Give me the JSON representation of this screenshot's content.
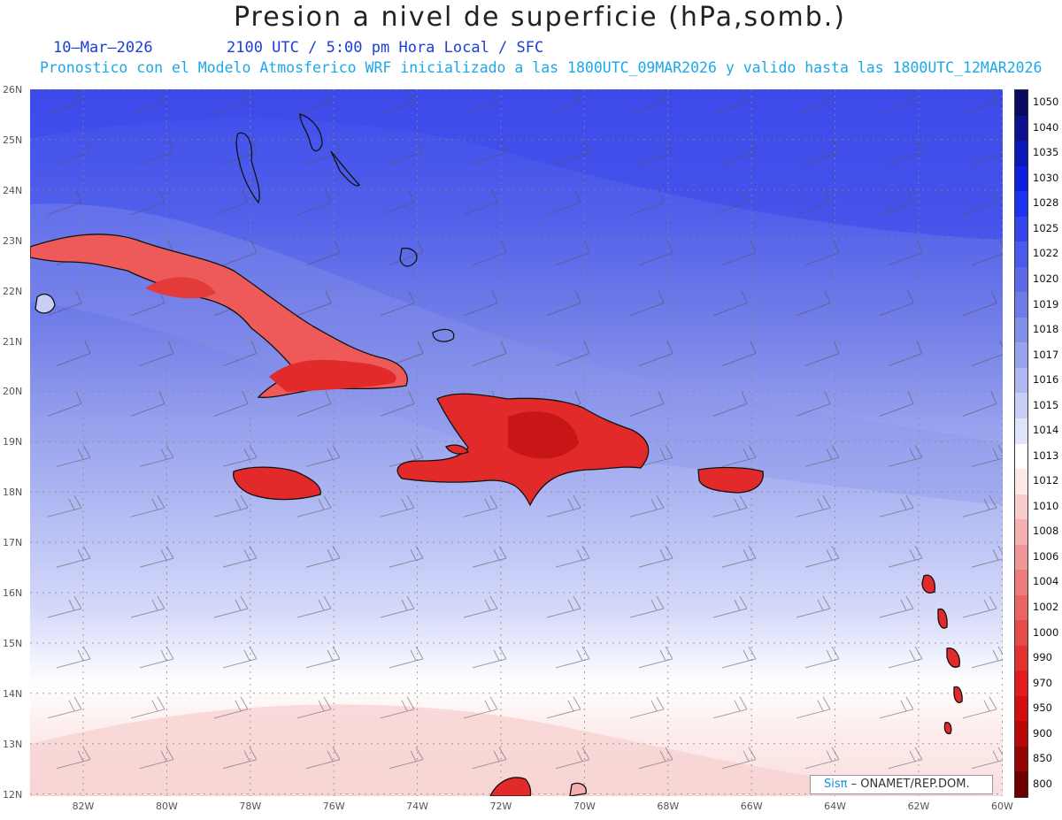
{
  "title": "Presion a nivel de superficie (hPa,somb.)",
  "date": "10–Mar–2026",
  "time_info": "2100 UTC / 5:00 pm Hora Local / SFC",
  "model_info": "Pronostico con el Modelo Atmosferico WRF inicializado a las 1800UTC_09MAR2026 y valido hasta las  1800UTC_12MAR2026",
  "lat_labels": [
    "26N",
    "25N",
    "24N",
    "23N",
    "22N",
    "21N",
    "20N",
    "19N",
    "18N",
    "17N",
    "16N",
    "15N",
    "14N",
    "13N",
    "12N"
  ],
  "lon_labels": [
    "82W",
    "80W",
    "78W",
    "76W",
    "74W",
    "72W",
    "70W",
    "68W",
    "66W",
    "64W",
    "62W",
    "60W"
  ],
  "legend": {
    "levels": [
      "1050",
      "1040",
      "1035",
      "1030",
      "1028",
      "1025",
      "1022",
      "1020",
      "1019",
      "1018",
      "1017",
      "1016",
      "1015",
      "1014",
      "1013",
      "1012",
      "1010",
      "1008",
      "1006",
      "1004",
      "1002",
      "1000",
      "990",
      "970",
      "950",
      "900",
      "850",
      "800"
    ],
    "colors": [
      "#0a0a5e",
      "#0b128c",
      "#0b18b8",
      "#0d20e0",
      "#1f34f0",
      "#3646ec",
      "#4b5aea",
      "#5d6ae8",
      "#6f7ce8",
      "#8290ea",
      "#98a3ee",
      "#b0b8f2",
      "#c8ceF6",
      "#e0e4fb",
      "#ffffff",
      "#fde8e8",
      "#f9cccc",
      "#f5b0b0",
      "#f19696",
      "#ee7c7c",
      "#ea6464",
      "#e64a4a",
      "#e33232",
      "#e01c1c",
      "#d20e0e",
      "#b80808",
      "#960404",
      "#6e0000"
    ]
  },
  "credit": {
    "logo": "Sisπ",
    "org": " – ONAMET/REP.DOM."
  },
  "map": {
    "region": "Caribe / Antillas Mayores",
    "lon_range": [
      -83.2,
      -60
    ],
    "lat_range": [
      12,
      26
    ],
    "variable": "Presion a nivel de superficie",
    "units": "hPa",
    "wind_barbs": true,
    "grid_lines": "dotted"
  }
}
